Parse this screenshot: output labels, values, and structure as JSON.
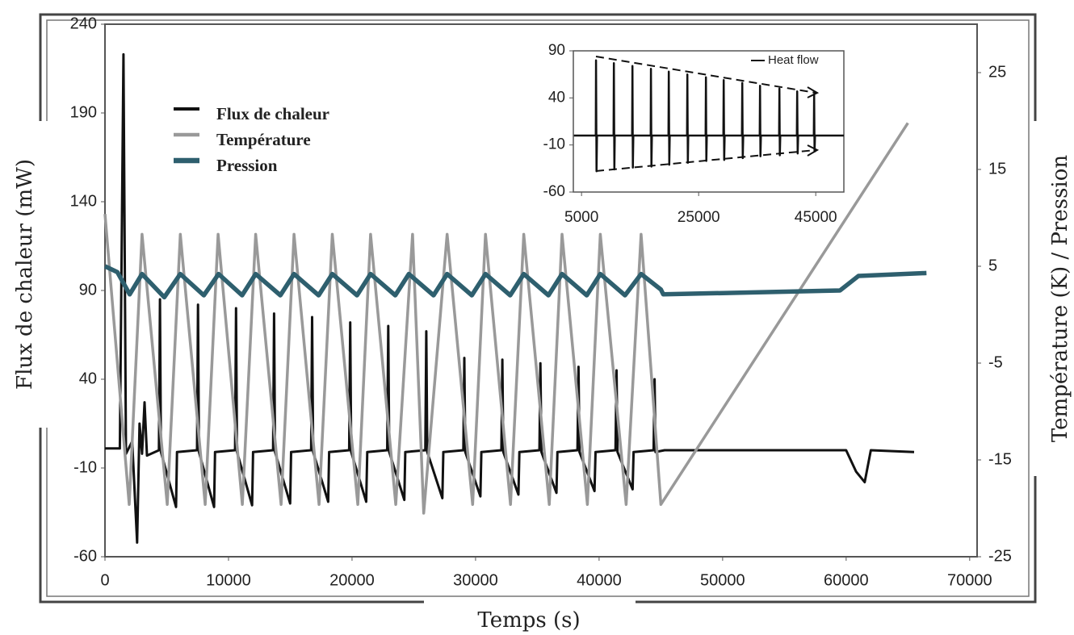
{
  "chart_data": [
    {
      "type": "line",
      "xlabel": "Temps (s)",
      "ylabel": "Flux de chaleur (mW)",
      "y2label": "Température (K) / Pression",
      "xlim": [
        0,
        70600
      ],
      "xticks": [
        0,
        10000,
        20000,
        30000,
        40000,
        50000,
        60000,
        70000
      ],
      "ylim": [
        -60,
        240
      ],
      "yticks": [
        240,
        190,
        140,
        90,
        40,
        -10,
        -60
      ],
      "y2lim": [
        -25,
        30
      ],
      "y2ticks": [
        25,
        15,
        5,
        -5,
        -15,
        -25
      ],
      "legend": "upper left",
      "series": [
        {
          "name": "Flux de chaleur",
          "color": "#111111",
          "width": 3,
          "x": [
            0,
            1200,
            1500,
            1700,
            2200,
            2600,
            2800,
            3000,
            3200,
            3400,
            4370,
            4450,
            4530,
            5750,
            5830,
            7450,
            7530,
            7610,
            8830,
            8910,
            10530,
            10610,
            10690,
            11910,
            11990,
            13610,
            13690,
            13770,
            14990,
            15070,
            16690,
            16770,
            16850,
            18070,
            18150,
            19770,
            19850,
            19930,
            21150,
            21230,
            22850,
            22930,
            23010,
            24230,
            24310,
            25930,
            26010,
            26090,
            27310,
            27390,
            29010,
            29090,
            29170,
            30390,
            30470,
            32090,
            32170,
            32250,
            33470,
            33550,
            35170,
            35250,
            35330,
            36550,
            36630,
            38250,
            38330,
            38410,
            39630,
            39710,
            41330,
            41410,
            41490,
            42710,
            42790,
            44410,
            44490,
            44570,
            45300,
            60000,
            60800,
            61500,
            62000,
            65500
          ],
          "values": [
            1,
            1,
            223,
            -2,
            5,
            -52,
            15,
            -2,
            27,
            -3,
            0,
            85,
            -1,
            -32,
            -1,
            0,
            82,
            -1,
            -32,
            -1,
            0,
            80,
            -1,
            -31,
            -1,
            0,
            77,
            -1,
            -30,
            -1,
            0,
            75,
            -1,
            -29,
            -1,
            0,
            72,
            -1,
            -29,
            -1,
            0,
            70,
            -1,
            -28,
            -1,
            0,
            67,
            -1,
            -27,
            -1,
            0,
            52,
            -1,
            -26,
            -1,
            0,
            51,
            -1,
            -25,
            -1,
            0,
            49,
            -1,
            -24,
            -1,
            0,
            47,
            -1,
            -23,
            -1,
            0,
            45,
            -1,
            -22,
            -1,
            0,
            40,
            -1,
            0,
            0,
            -12,
            -18,
            0,
            -1
          ]
        },
        {
          "name": "Température",
          "color": "#999999",
          "width": 3.5,
          "axis": "y2",
          "x": [
            0,
            1960,
            3000,
            5040,
            6100,
            8110,
            9160,
            11120,
            12200,
            14260,
            15300,
            17330,
            18400,
            20470,
            21500,
            23540,
            24900,
            25800,
            27700,
            29760,
            30800,
            32830,
            33900,
            35970,
            37000,
            39050,
            40100,
            42190,
            43400,
            45000,
            65000
          ],
          "values": [
            10.4,
            -19.6,
            8.3,
            -19.6,
            8.3,
            -19.6,
            8.3,
            -19.6,
            8.3,
            -19.6,
            8.3,
            -19.6,
            8.3,
            -19.6,
            8.3,
            -19.6,
            8.3,
            -20.5,
            8.3,
            -19.6,
            8.3,
            -19.6,
            8.3,
            -19.6,
            8.3,
            -19.6,
            8.3,
            -19.6,
            8.3,
            -19.6,
            19.8
          ]
        },
        {
          "name": "Pression",
          "color": "#2e5f6e",
          "width": 5.5,
          "axis": "y2",
          "x": [
            0,
            1000,
            2000,
            3000,
            4800,
            6100,
            8000,
            9200,
            11100,
            12200,
            14200,
            15300,
            17300,
            18400,
            20400,
            21500,
            23500,
            24600,
            26600,
            27700,
            29700,
            30800,
            32800,
            33900,
            35900,
            37000,
            39000,
            40100,
            42100,
            43400,
            45000,
            45200,
            59500,
            61000,
            66500
          ],
          "values": [
            5,
            4.4,
            2.1,
            4.2,
            1.8,
            4.2,
            2,
            4.2,
            2,
            4.2,
            2,
            4.2,
            2,
            4.2,
            2,
            4.2,
            2,
            4.2,
            2,
            4.2,
            2,
            4.2,
            2,
            4.2,
            2,
            4.2,
            2,
            4.2,
            2,
            4.2,
            2.6,
            2.1,
            2.5,
            4,
            4.3
          ]
        }
      ]
    },
    {
      "type": "line",
      "xlim": [
        3600,
        49800
      ],
      "xticks": [
        5000,
        25000,
        45000
      ],
      "ylim": [
        -60,
        90
      ],
      "yticks": [
        90,
        40,
        -10,
        -60
      ],
      "legend": "upper right",
      "series": [
        {
          "name": "Heat flow",
          "color": "#111111",
          "width": 2.5,
          "x": [
            3700,
            7430,
            7480,
            7560,
            7640,
            10470,
            10520,
            10600,
            10680,
            13640,
            13690,
            13770,
            13850,
            16810,
            16860,
            16940,
            17020,
            19850,
            19900,
            19980,
            20060,
            23020,
            23070,
            23150,
            23230,
            26190,
            26240,
            26320,
            26400,
            29230,
            29280,
            29360,
            29440,
            32400,
            32450,
            32530,
            32610,
            35430,
            35480,
            35560,
            35640,
            38740,
            38790,
            38870,
            38950,
            41780,
            41830,
            41910,
            41990,
            44670,
            44720,
            44800,
            44880,
            49800
          ],
          "values": [
            0,
            0,
            80,
            -38,
            0,
            0,
            77,
            -36,
            0,
            0,
            74,
            -34,
            0,
            0,
            71,
            -33,
            0,
            0,
            68,
            -31,
            0,
            0,
            65,
            -29,
            0,
            0,
            62,
            -27,
            0,
            0,
            59,
            -26,
            0,
            0,
            56,
            -24,
            0,
            0,
            53,
            -22,
            0,
            0,
            50,
            -21,
            0,
            0,
            47,
            -19,
            0,
            0,
            44,
            -17,
            0,
            0
          ]
        }
      ]
    }
  ]
}
